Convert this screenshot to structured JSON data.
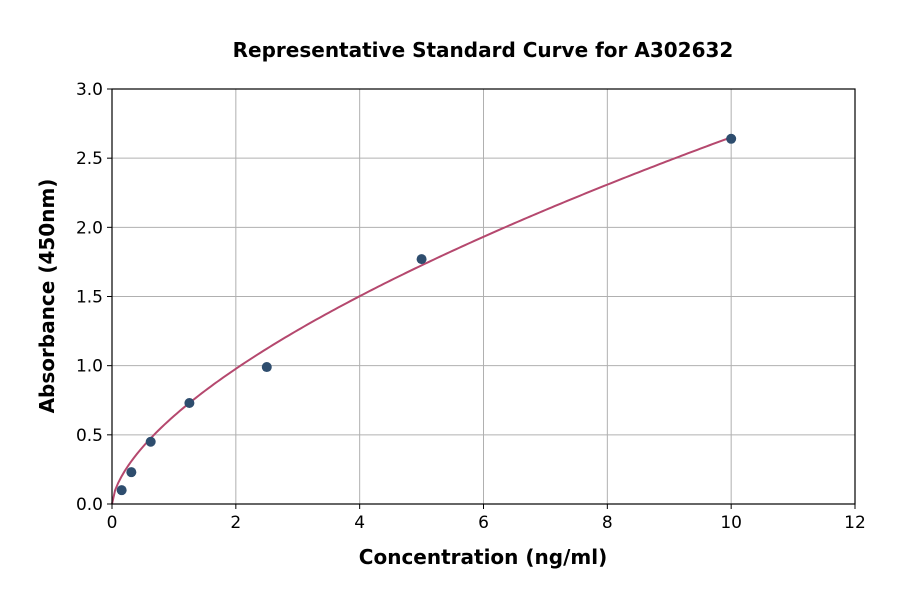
{
  "chart_data": {
    "type": "scatter",
    "title": "Representative Standard Curve for A302632",
    "xlabel": "Concentration (ng/ml)",
    "ylabel": "Absorbance (450nm)",
    "xlim": [
      0,
      12
    ],
    "ylim": [
      0,
      3.0
    ],
    "xticks": [
      "0",
      "2",
      "4",
      "6",
      "8",
      "10",
      "12"
    ],
    "yticks": [
      "0.0",
      "0.5",
      "1.0",
      "1.5",
      "2.0",
      "2.5",
      "3.0"
    ],
    "grid": true,
    "points": {
      "x": [
        0.156,
        0.3125,
        0.625,
        1.25,
        2.5,
        5,
        10
      ],
      "y": [
        0.1,
        0.23,
        0.45,
        0.73,
        0.99,
        1.77,
        2.64
      ]
    },
    "fit_curve": {
      "model": "power",
      "a": 0.636,
      "b": 0.62,
      "x_range": [
        0,
        10
      ]
    },
    "colors": {
      "points": "#2e4d6e",
      "curve": "#b5486e",
      "grid": "#b0b0b0"
    }
  }
}
